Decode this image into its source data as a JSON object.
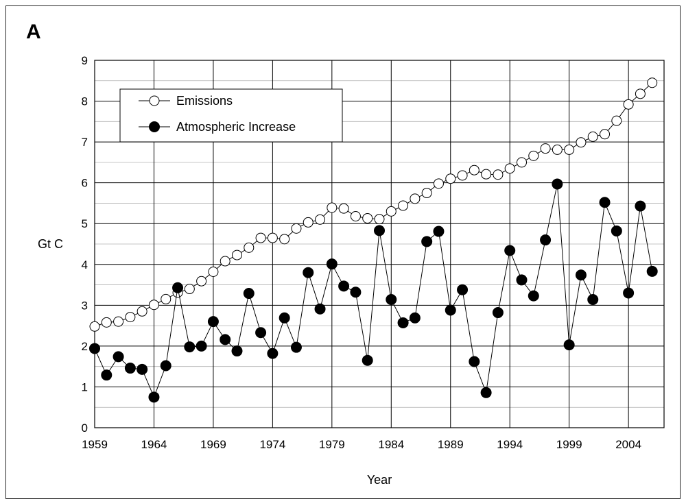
{
  "panel_label": "A",
  "chart_data": {
    "type": "line",
    "title": "",
    "xlabel": "Year",
    "ylabel": "Gt C",
    "xlim": [
      1959,
      2007
    ],
    "ylim": [
      0,
      9
    ],
    "x_ticks": [
      1959,
      1964,
      1969,
      1974,
      1979,
      1984,
      1989,
      1994,
      1999,
      2004
    ],
    "y_ticks": [
      0,
      1,
      2,
      3,
      4,
      5,
      6,
      7,
      8,
      9
    ],
    "grid": true,
    "legend_position": "top-left",
    "series": [
      {
        "name": "Emissions",
        "marker": "open-circle",
        "x": [
          1959,
          1960,
          1961,
          1962,
          1963,
          1964,
          1965,
          1966,
          1967,
          1968,
          1969,
          1970,
          1971,
          1972,
          1973,
          1974,
          1975,
          1976,
          1977,
          1978,
          1979,
          1980,
          1981,
          1982,
          1983,
          1984,
          1985,
          1986,
          1987,
          1988,
          1989,
          1990,
          1991,
          1992,
          1993,
          1994,
          1995,
          1996,
          1997,
          1998,
          1999,
          2000,
          2001,
          2002,
          2003,
          2004,
          2005,
          2006
        ],
        "values": [
          2.48,
          2.58,
          2.6,
          2.71,
          2.85,
          3.01,
          3.15,
          3.31,
          3.4,
          3.59,
          3.82,
          4.08,
          4.23,
          4.41,
          4.65,
          4.65,
          4.62,
          4.88,
          5.03,
          5.1,
          5.39,
          5.37,
          5.18,
          5.13,
          5.11,
          5.3,
          5.44,
          5.61,
          5.75,
          5.98,
          6.1,
          6.18,
          6.31,
          6.21,
          6.2,
          6.35,
          6.5,
          6.66,
          6.84,
          6.81,
          6.81,
          6.99,
          7.13,
          7.19,
          7.52,
          7.92,
          8.18,
          8.45
        ]
      },
      {
        "name": "Atmospheric Increase",
        "marker": "filled-circle",
        "x": [
          1959,
          1960,
          1961,
          1962,
          1963,
          1964,
          1965,
          1966,
          1967,
          1968,
          1969,
          1970,
          1971,
          1972,
          1973,
          1974,
          1975,
          1976,
          1977,
          1978,
          1979,
          1980,
          1981,
          1982,
          1983,
          1984,
          1985,
          1986,
          1987,
          1988,
          1989,
          1990,
          1991,
          1992,
          1993,
          1994,
          1995,
          1996,
          1997,
          1998,
          1999,
          2000,
          2001,
          2002,
          2003,
          2004,
          2005,
          2006
        ],
        "values": [
          1.94,
          1.29,
          1.74,
          1.46,
          1.43,
          0.75,
          1.52,
          3.43,
          1.98,
          2.0,
          2.6,
          2.16,
          1.88,
          3.29,
          2.33,
          1.82,
          2.69,
          1.97,
          3.8,
          2.91,
          4.01,
          3.47,
          3.32,
          1.65,
          4.83,
          3.14,
          2.57,
          2.69,
          4.56,
          4.81,
          2.88,
          3.38,
          1.62,
          0.86,
          2.82,
          4.34,
          3.62,
          3.23,
          4.6,
          5.97,
          2.03,
          3.74,
          3.14,
          5.52,
          4.82,
          3.3,
          5.43,
          3.83
        ]
      }
    ]
  }
}
